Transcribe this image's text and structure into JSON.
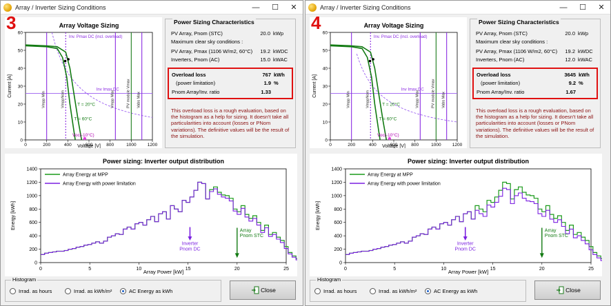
{
  "windows": [
    {
      "badge": "3",
      "title": "Array / Inverter Sizing Conditions",
      "characteristics": {
        "heading": "Power Sizing Characteristics",
        "rows": [
          {
            "label": "PV Array, Pnom (STC)",
            "value": "20.0",
            "unit": "kWp"
          },
          {
            "label": "Maximum clear sky conditions :",
            "value": "",
            "unit": ""
          },
          {
            "label": "PV Array, Pmax (1106 W/m2, 60°C)",
            "value": "19.2",
            "unit": "kWDC"
          },
          {
            "label": "Inverters, Pnom (AC)",
            "value": "15.0",
            "unit": "kWAC"
          }
        ],
        "overload": {
          "label": "Overload loss",
          "value": "767",
          "unit": "kWh",
          "sub_label": "(power limitation)",
          "sub_value": "1.9",
          "sub_unit": "%",
          "ratio_label": "Pnom Array/Inv. ratio",
          "ratio_value": "1.33"
        },
        "note": "This overload loss is a rough evaluation, based on the histogram as a help for sizing. It doesn't take all particularities into account (losses or PNom variations). The definitive values will be the result of the simulation."
      },
      "voltage_chart": {
        "title": "Array Voltage Sizing",
        "xlabel": "Voltage [V]",
        "ylabel": "Current [A]",
        "xticks": [
          "0",
          "200",
          "400",
          "600",
          "800",
          "1000",
          "1200"
        ],
        "yticks": [
          "0",
          "10",
          "20",
          "30",
          "40",
          "50",
          "60"
        ],
        "labels": {
          "pmax": "Inv. Pmax DC (incl. overload)",
          "imax": "Inv Imax DC",
          "t20": "T = 20°C",
          "t60": "T = 60°C",
          "voc": "Voc(-10°C)",
          "vmppmin": "Vmpp Min",
          "vmppnom": "VmppNom",
          "vmppmax": "Vmpp Max",
          "vmodmax": "PV module Vmax",
          "vabsmax": "Vabs Max"
        }
      },
      "energy_chart": {
        "title": "Power sizing: Inverter output distribution",
        "xlabel": "Array Power [kW]",
        "ylabel": "Energy [kWh]",
        "legend_mpp": "Array Energy at MPP",
        "legend_lim": "Array Energy with power limitation",
        "inv_label": [
          "Inverter",
          "Pnom DC"
        ],
        "arr_label": [
          "Array",
          "Pnom STC"
        ],
        "xticks": [
          "0",
          "5",
          "10",
          "15",
          "20",
          "25"
        ],
        "yticks": [
          "0",
          "200",
          "400",
          "600",
          "800",
          "1000",
          "1200",
          "1400"
        ]
      },
      "histogram": {
        "heading": "Histogram",
        "options": [
          "Irrad. as hours",
          "Irrad. as kWh/m²",
          "AC Energy as kWh"
        ],
        "selected": 2
      },
      "close_label": "Close"
    },
    {
      "badge": "4",
      "title": "Array / Inverter Sizing Conditions",
      "characteristics": {
        "heading": "Power Sizing Characteristics",
        "rows": [
          {
            "label": "PV Array, Pnom (STC)",
            "value": "20.0",
            "unit": "kWp"
          },
          {
            "label": "Maximum clear sky conditions :",
            "value": "",
            "unit": ""
          },
          {
            "label": "PV Array, Pmax (1106 W/m2, 60°C)",
            "value": "19.2",
            "unit": "kWDC"
          },
          {
            "label": "Inverters, Pnom (AC)",
            "value": "12.0",
            "unit": "kWAC"
          }
        ],
        "overload": {
          "label": "Overload loss",
          "value": "3645",
          "unit": "kWh",
          "sub_label": "(power limitation)",
          "sub_value": "9.2",
          "sub_unit": "%",
          "ratio_label": "Pnom Array/Inv. ratio",
          "ratio_value": "1.67"
        },
        "note": "This overload loss is a rough evaluation, based on the histogram as a help for sizing. It doesn't take all particularities into account (losses or PNom variations). The definitive values will be the result of the simulation."
      },
      "voltage_chart": {
        "title": "Array Voltage Sizing",
        "xlabel": "Voltage [V]",
        "ylabel": "Current [A]",
        "xticks": [
          "0",
          "200",
          "400",
          "600",
          "800",
          "1000",
          "1200"
        ],
        "yticks": [
          "0",
          "10",
          "20",
          "30",
          "40",
          "50",
          "60"
        ],
        "labels": {
          "pmax": "Inv. Pmax DC (incl. overload)",
          "imax": "Inv Imax DC",
          "t20": "T = 20°C",
          "t60": "T = 60°C",
          "voc": "Voc(-10°C)",
          "vmppmin": "Vmpp Min",
          "vmppnom": "VmppNom",
          "vmppmax": "Vmpp Max",
          "vmodmax": "PV module Vmax",
          "vabsmax": "Vabs Max"
        }
      },
      "energy_chart": {
        "title": "Power sizing: Inverter output distribution",
        "xlabel": "Array Power [kW]",
        "ylabel": "Energy [kWh]",
        "legend_mpp": "Array Energy at MPP",
        "legend_lim": "Array Energy with power limitation",
        "inv_label": [
          "Inverter",
          "Pnom DC"
        ],
        "arr_label": [
          "Array",
          "Pnom STC"
        ],
        "xticks": [
          "0",
          "5",
          "10",
          "15",
          "20",
          "25"
        ],
        "yticks": [
          "0",
          "200",
          "400",
          "600",
          "800",
          "1000",
          "1200",
          "1400"
        ]
      },
      "histogram": {
        "heading": "Histogram",
        "options": [
          "Irrad. as hours",
          "Irrad. as kWh/m²",
          "AC Energy as kWh"
        ],
        "selected": 2
      },
      "close_label": "Close"
    }
  ],
  "chart_data": [
    {
      "type": "line",
      "name": "voltage-sizing-3",
      "title": "Array Voltage Sizing",
      "xlabel": "Voltage [V]",
      "ylabel": "Current [A]",
      "xlim": [
        0,
        1200
      ],
      "ylim": [
        0,
        60
      ],
      "vertical_lines": {
        "vmpp_min": 200,
        "vmpp_nom": 380,
        "vmpp_max": 850,
        "pv_module_vmax": 1000,
        "vabs_max": 1100
      },
      "inv_imax_dc": 26,
      "inv_pmax_dc_kw": 15,
      "series": [
        {
          "name": "T = 20°C",
          "x": [
            0,
            200,
            300,
            380,
            420,
            460,
            500,
            530
          ],
          "y": [
            53,
            52.5,
            52,
            49,
            40,
            25,
            10,
            0
          ]
        },
        {
          "name": "T = 60°C",
          "x": [
            0,
            200,
            300,
            350,
            390,
            420,
            450,
            470
          ],
          "y": [
            52.5,
            52,
            51,
            46,
            35,
            20,
            8,
            0
          ]
        }
      ],
      "voc_minus10": 560
    },
    {
      "type": "line",
      "name": "energy-distribution-3",
      "title": "Power sizing: Inverter output distribution",
      "xlabel": "Array Power [kW]",
      "ylabel": "Energy [kWh]",
      "xlim": [
        0,
        25
      ],
      "ylim": [
        0,
        1400
      ],
      "inverter_pnom_dc": 15.2,
      "array_pnom_stc": 20,
      "series": [
        {
          "name": "Array Energy at MPP",
          "step": 0.4,
          "values": [
            120,
            140,
            150,
            160,
            170,
            170,
            180,
            200,
            210,
            230,
            240,
            260,
            270,
            290,
            310,
            290,
            320,
            380,
            400,
            430,
            420,
            500,
            530,
            500,
            580,
            600,
            560,
            640,
            690,
            610,
            730,
            760,
            650,
            850,
            800,
            760,
            930,
            900,
            980,
            1080,
            1200,
            1180,
            950,
            1090,
            1130,
            1050,
            1010,
            1000,
            960,
            800,
            760,
            850,
            720,
            660,
            700,
            600,
            480,
            560,
            420,
            450,
            380,
            330,
            240,
            150,
            100,
            60,
            20
          ]
        },
        {
          "name": "Array Energy with power limitation",
          "step": 0.4,
          "values": [
            120,
            140,
            150,
            160,
            170,
            170,
            180,
            200,
            210,
            230,
            240,
            260,
            270,
            290,
            310,
            290,
            320,
            380,
            400,
            430,
            420,
            500,
            530,
            500,
            580,
            600,
            560,
            640,
            690,
            610,
            730,
            760,
            650,
            850,
            800,
            760,
            930,
            900,
            980,
            1080,
            1200,
            1180,
            950,
            1060,
            1100,
            1020,
            980,
            960,
            920,
            770,
            720,
            810,
            680,
            620,
            660,
            560,
            450,
            520,
            390,
            420,
            350,
            300,
            210,
            130,
            80,
            40,
            10
          ]
        }
      ]
    },
    {
      "type": "line",
      "name": "voltage-sizing-4",
      "title": "Array Voltage Sizing",
      "xlabel": "Voltage [V]",
      "ylabel": "Current [A]",
      "xlim": [
        0,
        1200
      ],
      "ylim": [
        0,
        60
      ],
      "vertical_lines": {
        "vmpp_min": 200,
        "vmpp_nom": 380,
        "vmpp_max": 850,
        "pv_module_vmax": 1000,
        "vabs_max": 1100
      },
      "inv_imax_dc": 26,
      "inv_pmax_dc_kw": 12,
      "series": [
        {
          "name": "T = 20°C",
          "x": [
            0,
            200,
            300,
            380,
            420,
            460,
            500,
            530
          ],
          "y": [
            53,
            52.5,
            52,
            49,
            40,
            25,
            10,
            0
          ]
        },
        {
          "name": "T = 60°C",
          "x": [
            0,
            200,
            300,
            350,
            390,
            420,
            450,
            470
          ],
          "y": [
            52.5,
            52,
            51,
            46,
            35,
            20,
            8,
            0
          ]
        }
      ],
      "voc_minus10": 560
    },
    {
      "type": "line",
      "name": "energy-distribution-4",
      "title": "Power sizing: Inverter output distribution",
      "xlabel": "Array Power [kW]",
      "ylabel": "Energy [kWh]",
      "xlim": [
        0,
        25
      ],
      "ylim": [
        0,
        1400
      ],
      "inverter_pnom_dc": 12.2,
      "array_pnom_stc": 20,
      "series": [
        {
          "name": "Array Energy at MPP",
          "step": 0.4,
          "values": [
            120,
            140,
            150,
            160,
            170,
            170,
            180,
            200,
            210,
            230,
            240,
            260,
            270,
            290,
            310,
            290,
            320,
            380,
            400,
            430,
            420,
            500,
            530,
            500,
            580,
            600,
            560,
            640,
            690,
            610,
            730,
            760,
            650,
            850,
            800,
            760,
            930,
            900,
            980,
            1080,
            1200,
            1180,
            950,
            1090,
            1130,
            1050,
            1010,
            1000,
            960,
            800,
            760,
            850,
            720,
            660,
            700,
            600,
            480,
            560,
            420,
            450,
            380,
            330,
            240,
            150,
            100,
            60,
            20
          ]
        },
        {
          "name": "Array Energy with power limitation",
          "step": 0.4,
          "values": [
            120,
            140,
            150,
            160,
            170,
            170,
            180,
            200,
            210,
            230,
            240,
            260,
            270,
            290,
            310,
            290,
            320,
            380,
            400,
            430,
            420,
            500,
            530,
            500,
            580,
            600,
            560,
            640,
            690,
            610,
            730,
            760,
            650,
            780,
            730,
            690,
            860,
            830,
            900,
            990,
            1110,
            1090,
            880,
            1000,
            1040,
            960,
            920,
            910,
            880,
            730,
            690,
            780,
            650,
            600,
            640,
            540,
            430,
            500,
            370,
            400,
            330,
            280,
            190,
            120,
            70,
            30,
            10
          ]
        }
      ]
    }
  ],
  "colors": {
    "curve_green": "#127a12",
    "mpp_green": "#1a9a1a",
    "limit_purple": "#7a1fe0",
    "vline_purple": "#8b2be2",
    "vline_green": "#1a7a1a",
    "imax_purple": "#9a5cf0",
    "highlight_red": "#e01010",
    "note_red": "#8b1010"
  }
}
